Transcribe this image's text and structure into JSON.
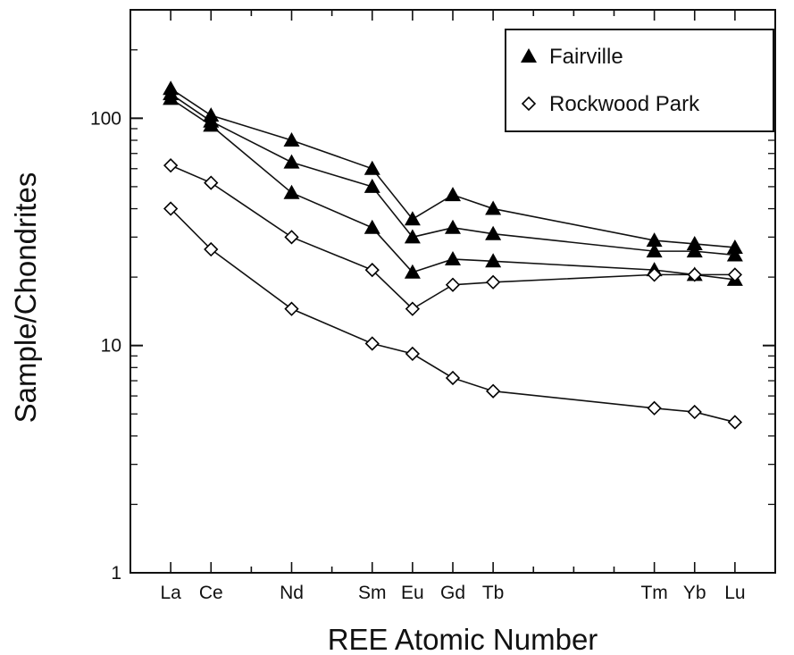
{
  "chart_data": {
    "type": "line",
    "xlabel": "REE Atomic Number",
    "ylabel": "Sample/Chondrites",
    "yscale": "log",
    "ylim": [
      1,
      300
    ],
    "y_tick_labels": [
      "1",
      "10",
      "100"
    ],
    "xlim": [
      56,
      72
    ],
    "categories": [
      "La",
      "Ce",
      "Nd",
      "Sm",
      "Eu",
      "Gd",
      "Tb",
      "Tm",
      "Yb",
      "Lu"
    ],
    "atomic_numbers": [
      57,
      58,
      60,
      62,
      63,
      64,
      65,
      69,
      70,
      71
    ],
    "legend": {
      "position": "top-right",
      "entries": [
        {
          "label": "Fairville",
          "marker": "filled-triangle"
        },
        {
          "label": "Rockwood Park",
          "marker": "open-diamond"
        }
      ]
    },
    "series": [
      {
        "group": "Fairville",
        "marker": "filled-triangle",
        "values": [
          135,
          103,
          80,
          60,
          36,
          46,
          40,
          29,
          28,
          27
        ]
      },
      {
        "group": "Fairville",
        "marker": "filled-triangle",
        "values": [
          128,
          97,
          64,
          50,
          30,
          33,
          31,
          26,
          26,
          25
        ]
      },
      {
        "group": "Fairville",
        "marker": "filled-triangle",
        "values": [
          122,
          93,
          47,
          33,
          21,
          24,
          23.5,
          21.5,
          20.5,
          19.5
        ]
      },
      {
        "group": "Rockwood Park",
        "marker": "open-diamond",
        "values": [
          62,
          52,
          30,
          21.5,
          14.5,
          18.5,
          19,
          20.5,
          20.5,
          20.5
        ]
      },
      {
        "group": "Rockwood Park",
        "marker": "open-diamond",
        "values": [
          40,
          26.5,
          14.5,
          10.2,
          9.2,
          7.2,
          6.3,
          5.3,
          5.1,
          4.6
        ]
      }
    ],
    "grid": false,
    "colors": {
      "line": "#111111",
      "marker": "#000000",
      "background": "#ffffff"
    }
  }
}
